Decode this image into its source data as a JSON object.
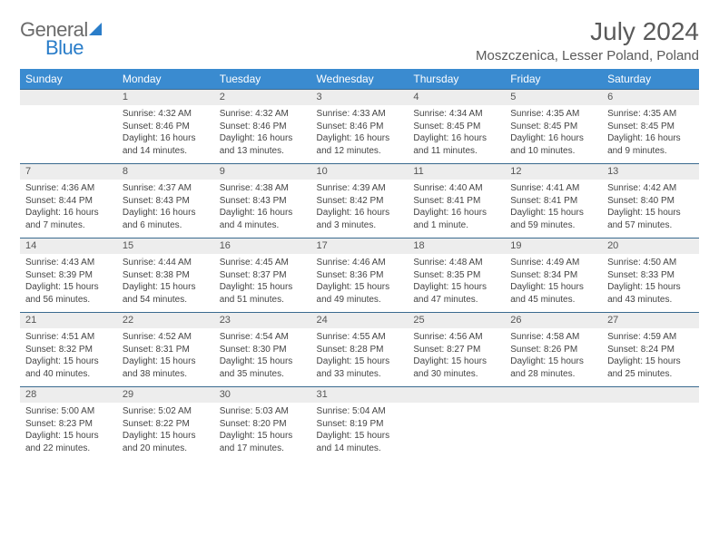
{
  "brand": {
    "part1": "General",
    "part2": "Blue"
  },
  "title": "July 2024",
  "location": "Moszczenica, Lesser Poland, Poland",
  "colors": {
    "header_bg": "#3a8bd0",
    "daynum_bg": "#ededed",
    "row_border": "#3a6a8f",
    "text": "#444444",
    "title_color": "#5a5a5a",
    "brand_blue": "#2a7dc9"
  },
  "typography": {
    "title_fontsize": 28,
    "location_fontsize": 15,
    "dayhead_fontsize": 12,
    "cell_fontsize": 10
  },
  "day_names": [
    "Sunday",
    "Monday",
    "Tuesday",
    "Wednesday",
    "Thursday",
    "Friday",
    "Saturday"
  ],
  "weeks": [
    {
      "nums": [
        "",
        "1",
        "2",
        "3",
        "4",
        "5",
        "6"
      ],
      "cells": [
        null,
        {
          "sunrise": "Sunrise: 4:32 AM",
          "sunset": "Sunset: 8:46 PM",
          "d1": "Daylight: 16 hours",
          "d2": "and 14 minutes."
        },
        {
          "sunrise": "Sunrise: 4:32 AM",
          "sunset": "Sunset: 8:46 PM",
          "d1": "Daylight: 16 hours",
          "d2": "and 13 minutes."
        },
        {
          "sunrise": "Sunrise: 4:33 AM",
          "sunset": "Sunset: 8:46 PM",
          "d1": "Daylight: 16 hours",
          "d2": "and 12 minutes."
        },
        {
          "sunrise": "Sunrise: 4:34 AM",
          "sunset": "Sunset: 8:45 PM",
          "d1": "Daylight: 16 hours",
          "d2": "and 11 minutes."
        },
        {
          "sunrise": "Sunrise: 4:35 AM",
          "sunset": "Sunset: 8:45 PM",
          "d1": "Daylight: 16 hours",
          "d2": "and 10 minutes."
        },
        {
          "sunrise": "Sunrise: 4:35 AM",
          "sunset": "Sunset: 8:45 PM",
          "d1": "Daylight: 16 hours",
          "d2": "and 9 minutes."
        }
      ]
    },
    {
      "nums": [
        "7",
        "8",
        "9",
        "10",
        "11",
        "12",
        "13"
      ],
      "cells": [
        {
          "sunrise": "Sunrise: 4:36 AM",
          "sunset": "Sunset: 8:44 PM",
          "d1": "Daylight: 16 hours",
          "d2": "and 7 minutes."
        },
        {
          "sunrise": "Sunrise: 4:37 AM",
          "sunset": "Sunset: 8:43 PM",
          "d1": "Daylight: 16 hours",
          "d2": "and 6 minutes."
        },
        {
          "sunrise": "Sunrise: 4:38 AM",
          "sunset": "Sunset: 8:43 PM",
          "d1": "Daylight: 16 hours",
          "d2": "and 4 minutes."
        },
        {
          "sunrise": "Sunrise: 4:39 AM",
          "sunset": "Sunset: 8:42 PM",
          "d1": "Daylight: 16 hours",
          "d2": "and 3 minutes."
        },
        {
          "sunrise": "Sunrise: 4:40 AM",
          "sunset": "Sunset: 8:41 PM",
          "d1": "Daylight: 16 hours",
          "d2": "and 1 minute."
        },
        {
          "sunrise": "Sunrise: 4:41 AM",
          "sunset": "Sunset: 8:41 PM",
          "d1": "Daylight: 15 hours",
          "d2": "and 59 minutes."
        },
        {
          "sunrise": "Sunrise: 4:42 AM",
          "sunset": "Sunset: 8:40 PM",
          "d1": "Daylight: 15 hours",
          "d2": "and 57 minutes."
        }
      ]
    },
    {
      "nums": [
        "14",
        "15",
        "16",
        "17",
        "18",
        "19",
        "20"
      ],
      "cells": [
        {
          "sunrise": "Sunrise: 4:43 AM",
          "sunset": "Sunset: 8:39 PM",
          "d1": "Daylight: 15 hours",
          "d2": "and 56 minutes."
        },
        {
          "sunrise": "Sunrise: 4:44 AM",
          "sunset": "Sunset: 8:38 PM",
          "d1": "Daylight: 15 hours",
          "d2": "and 54 minutes."
        },
        {
          "sunrise": "Sunrise: 4:45 AM",
          "sunset": "Sunset: 8:37 PM",
          "d1": "Daylight: 15 hours",
          "d2": "and 51 minutes."
        },
        {
          "sunrise": "Sunrise: 4:46 AM",
          "sunset": "Sunset: 8:36 PM",
          "d1": "Daylight: 15 hours",
          "d2": "and 49 minutes."
        },
        {
          "sunrise": "Sunrise: 4:48 AM",
          "sunset": "Sunset: 8:35 PM",
          "d1": "Daylight: 15 hours",
          "d2": "and 47 minutes."
        },
        {
          "sunrise": "Sunrise: 4:49 AM",
          "sunset": "Sunset: 8:34 PM",
          "d1": "Daylight: 15 hours",
          "d2": "and 45 minutes."
        },
        {
          "sunrise": "Sunrise: 4:50 AM",
          "sunset": "Sunset: 8:33 PM",
          "d1": "Daylight: 15 hours",
          "d2": "and 43 minutes."
        }
      ]
    },
    {
      "nums": [
        "21",
        "22",
        "23",
        "24",
        "25",
        "26",
        "27"
      ],
      "cells": [
        {
          "sunrise": "Sunrise: 4:51 AM",
          "sunset": "Sunset: 8:32 PM",
          "d1": "Daylight: 15 hours",
          "d2": "and 40 minutes."
        },
        {
          "sunrise": "Sunrise: 4:52 AM",
          "sunset": "Sunset: 8:31 PM",
          "d1": "Daylight: 15 hours",
          "d2": "and 38 minutes."
        },
        {
          "sunrise": "Sunrise: 4:54 AM",
          "sunset": "Sunset: 8:30 PM",
          "d1": "Daylight: 15 hours",
          "d2": "and 35 minutes."
        },
        {
          "sunrise": "Sunrise: 4:55 AM",
          "sunset": "Sunset: 8:28 PM",
          "d1": "Daylight: 15 hours",
          "d2": "and 33 minutes."
        },
        {
          "sunrise": "Sunrise: 4:56 AM",
          "sunset": "Sunset: 8:27 PM",
          "d1": "Daylight: 15 hours",
          "d2": "and 30 minutes."
        },
        {
          "sunrise": "Sunrise: 4:58 AM",
          "sunset": "Sunset: 8:26 PM",
          "d1": "Daylight: 15 hours",
          "d2": "and 28 minutes."
        },
        {
          "sunrise": "Sunrise: 4:59 AM",
          "sunset": "Sunset: 8:24 PM",
          "d1": "Daylight: 15 hours",
          "d2": "and 25 minutes."
        }
      ]
    },
    {
      "nums": [
        "28",
        "29",
        "30",
        "31",
        "",
        "",
        ""
      ],
      "cells": [
        {
          "sunrise": "Sunrise: 5:00 AM",
          "sunset": "Sunset: 8:23 PM",
          "d1": "Daylight: 15 hours",
          "d2": "and 22 minutes."
        },
        {
          "sunrise": "Sunrise: 5:02 AM",
          "sunset": "Sunset: 8:22 PM",
          "d1": "Daylight: 15 hours",
          "d2": "and 20 minutes."
        },
        {
          "sunrise": "Sunrise: 5:03 AM",
          "sunset": "Sunset: 8:20 PM",
          "d1": "Daylight: 15 hours",
          "d2": "and 17 minutes."
        },
        {
          "sunrise": "Sunrise: 5:04 AM",
          "sunset": "Sunset: 8:19 PM",
          "d1": "Daylight: 15 hours",
          "d2": "and 14 minutes."
        },
        null,
        null,
        null
      ]
    }
  ]
}
